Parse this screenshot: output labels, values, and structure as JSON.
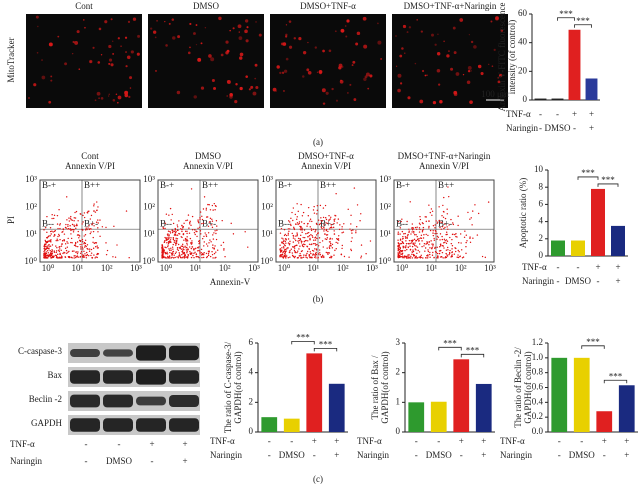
{
  "panel_labels": [
    "(a)",
    "(b)",
    "(c)"
  ],
  "mito": {
    "ylabel": "MitoTracker",
    "titles": [
      "Cont",
      "DMSO",
      "DMSO+TNF-α",
      "DMSO+TNF-α+Naringin"
    ],
    "scale": "100 μm"
  },
  "flow": {
    "panels": [
      {
        "title": "Cont",
        "subtitle": "Annexin V/PI"
      },
      {
        "title": "DMSO",
        "subtitle": "Annexin V/PI"
      },
      {
        "title": "DMSO+TNF-α",
        "subtitle": "Annexin V/PI"
      },
      {
        "title": "DMSO+TNF-α+Naringin",
        "subtitle": "Annexin V/PI"
      }
    ],
    "quadrants": [
      "B-+",
      "B++",
      "B--",
      "B+-"
    ],
    "ticks": [
      "10⁰",
      "10¹",
      "10²",
      "10³"
    ],
    "xlabel": "Annexin-V",
    "ylabel": "PI"
  },
  "blot": {
    "bands": [
      "C-caspase-3",
      "Bax",
      "Beclin -2",
      "GAPDH"
    ],
    "conditions": [
      {
        "name": "TNF-α",
        "labels": [
          "-",
          "-",
          "+",
          "+"
        ]
      },
      {
        "name": "Naringin",
        "labels": [
          "-",
          "DMSO",
          "-",
          "+"
        ]
      }
    ]
  },
  "chart_data": [
    {
      "type": "bar",
      "ylabel": [
        "Annexin V-FITC fluorescence",
        "intensity (of control)"
      ],
      "values": [
        1,
        1,
        49,
        15
      ],
      "colors": [
        "#222222",
        "#222222",
        "#e02020",
        "#2a3a9a"
      ],
      "ylim": [
        0,
        60
      ],
      "yticks": [
        0,
        20,
        40,
        60
      ],
      "significance": [
        "***",
        "***"
      ],
      "conditions": [
        {
          "name": "TNF-α",
          "labels": [
            "-",
            "-",
            "+",
            "+"
          ]
        },
        {
          "name": "Naringin",
          "labels": [
            "-",
            "DMSO",
            "-",
            "+"
          ]
        }
      ]
    },
    {
      "type": "bar",
      "ylabel": [
        "Apoptotic ratio (%)"
      ],
      "values": [
        1.8,
        1.8,
        7.8,
        3.5
      ],
      "colors": [
        "#2e9a2e",
        "#e8d000",
        "#e02020",
        "#1a2a80"
      ],
      "ylim": [
        0,
        10
      ],
      "yticks": [
        0,
        2,
        4,
        6,
        8,
        10
      ],
      "significance": [
        "***",
        "***"
      ],
      "conditions": [
        {
          "name": "TNF-α",
          "labels": [
            "-",
            "-",
            "+",
            "+"
          ]
        },
        {
          "name": "Naringin",
          "labels": [
            "-",
            "DMSO",
            "-",
            "+"
          ]
        }
      ]
    },
    {
      "type": "bar",
      "ylabel": [
        "The ratio of C-caspase-3/",
        "GAPDH(of control)"
      ],
      "values": [
        1.0,
        0.9,
        5.3,
        3.25
      ],
      "colors": [
        "#2e9a2e",
        "#e8d000",
        "#e02020",
        "#1a2a80"
      ],
      "ylim": [
        0,
        6
      ],
      "yticks": [
        0,
        2,
        4,
        6
      ],
      "significance": [
        "***",
        "***"
      ],
      "conditions": [
        {
          "name": "TNF-α",
          "labels": [
            "-",
            "-",
            "+",
            "+"
          ]
        },
        {
          "name": "Naringin",
          "labels": [
            "-",
            "DMSO",
            "-",
            "+"
          ]
        }
      ]
    },
    {
      "type": "bar",
      "ylabel": [
        "The ratio of Bax /",
        "GAPDH(of control)"
      ],
      "values": [
        1.0,
        1.02,
        2.45,
        1.62
      ],
      "colors": [
        "#2e9a2e",
        "#e8d000",
        "#e02020",
        "#1a2a80"
      ],
      "ylim": [
        0,
        3
      ],
      "yticks": [
        0,
        1,
        2,
        3
      ],
      "significance": [
        "***",
        "***"
      ],
      "conditions": [
        {
          "name": "TNF-α",
          "labels": [
            "-",
            "-",
            "+",
            "+"
          ]
        },
        {
          "name": "Naringin",
          "labels": [
            "-",
            "DMSO",
            "-",
            "+"
          ]
        }
      ]
    },
    {
      "type": "bar",
      "ylabel": [
        "The ratio of Beclin -2/",
        "GAPDH(of control)"
      ],
      "values": [
        1.0,
        1.0,
        0.28,
        0.63
      ],
      "colors": [
        "#2e9a2e",
        "#e8d000",
        "#e02020",
        "#1a2a80"
      ],
      "ylim": [
        0,
        1.2
      ],
      "yticks": [
        {
          "value": 0,
          "label": "0.0"
        },
        0.2,
        0.4,
        0.6,
        0.8,
        {
          "value": 1,
          "label": "1.0"
        },
        1.2
      ],
      "significance": [
        "***",
        "***"
      ],
      "conditions": [
        {
          "name": "TNF-α",
          "labels": [
            "-",
            "-",
            "+",
            "+"
          ]
        },
        {
          "name": "Naringin",
          "labels": [
            "-",
            "DMSO",
            "-",
            "+"
          ]
        }
      ]
    }
  ]
}
